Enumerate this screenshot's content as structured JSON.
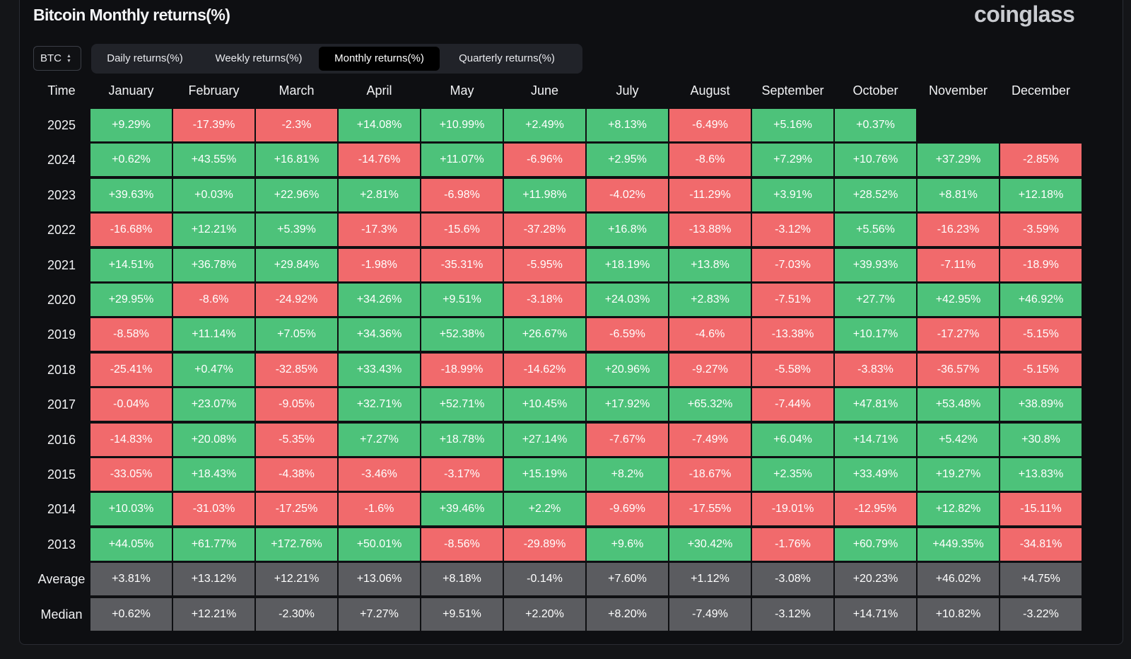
{
  "header": {
    "title": "Bitcoin Monthly returns(%)",
    "logo_text": "coinglass"
  },
  "asset_selector": {
    "value": "BTC"
  },
  "tabs": [
    {
      "label": "Daily returns(%)",
      "active": false
    },
    {
      "label": "Weekly returns(%)",
      "active": false
    },
    {
      "label": "Monthly returns(%)",
      "active": true
    },
    {
      "label": "Quarterly returns(%)",
      "active": false
    }
  ],
  "colors": {
    "positive": "#4dc27a",
    "negative": "#f16a6c",
    "summary": "#5b5c60"
  },
  "chart_data": {
    "type": "table",
    "title": "Bitcoin Monthly returns(%)",
    "time_header": "Time",
    "columns": [
      "January",
      "February",
      "March",
      "April",
      "May",
      "June",
      "July",
      "August",
      "September",
      "October",
      "November",
      "December"
    ],
    "rows": [
      {
        "label": "2025",
        "values": [
          "+9.29%",
          "-17.39%",
          "-2.3%",
          "+14.08%",
          "+10.99%",
          "+2.49%",
          "+8.13%",
          "-6.49%",
          "+5.16%",
          "+0.37%",
          null,
          null
        ]
      },
      {
        "label": "2024",
        "values": [
          "+0.62%",
          "+43.55%",
          "+16.81%",
          "-14.76%",
          "+11.07%",
          "-6.96%",
          "+2.95%",
          "-8.6%",
          "+7.29%",
          "+10.76%",
          "+37.29%",
          "-2.85%"
        ]
      },
      {
        "label": "2023",
        "values": [
          "+39.63%",
          "+0.03%",
          "+22.96%",
          "+2.81%",
          "-6.98%",
          "+11.98%",
          "-4.02%",
          "-11.29%",
          "+3.91%",
          "+28.52%",
          "+8.81%",
          "+12.18%"
        ]
      },
      {
        "label": "2022",
        "values": [
          "-16.68%",
          "+12.21%",
          "+5.39%",
          "-17.3%",
          "-15.6%",
          "-37.28%",
          "+16.8%",
          "-13.88%",
          "-3.12%",
          "+5.56%",
          "-16.23%",
          "-3.59%"
        ]
      },
      {
        "label": "2021",
        "values": [
          "+14.51%",
          "+36.78%",
          "+29.84%",
          "-1.98%",
          "-35.31%",
          "-5.95%",
          "+18.19%",
          "+13.8%",
          "-7.03%",
          "+39.93%",
          "-7.11%",
          "-18.9%"
        ]
      },
      {
        "label": "2020",
        "values": [
          "+29.95%",
          "-8.6%",
          "-24.92%",
          "+34.26%",
          "+9.51%",
          "-3.18%",
          "+24.03%",
          "+2.83%",
          "-7.51%",
          "+27.7%",
          "+42.95%",
          "+46.92%"
        ]
      },
      {
        "label": "2019",
        "values": [
          "-8.58%",
          "+11.14%",
          "+7.05%",
          "+34.36%",
          "+52.38%",
          "+26.67%",
          "-6.59%",
          "-4.6%",
          "-13.38%",
          "+10.17%",
          "-17.27%",
          "-5.15%"
        ]
      },
      {
        "label": "2018",
        "values": [
          "-25.41%",
          "+0.47%",
          "-32.85%",
          "+33.43%",
          "-18.99%",
          "-14.62%",
          "+20.96%",
          "-9.27%",
          "-5.58%",
          "-3.83%",
          "-36.57%",
          "-5.15%"
        ]
      },
      {
        "label": "2017",
        "values": [
          "-0.04%",
          "+23.07%",
          "-9.05%",
          "+32.71%",
          "+52.71%",
          "+10.45%",
          "+17.92%",
          "+65.32%",
          "-7.44%",
          "+47.81%",
          "+53.48%",
          "+38.89%"
        ]
      },
      {
        "label": "2016",
        "values": [
          "-14.83%",
          "+20.08%",
          "-5.35%",
          "+7.27%",
          "+18.78%",
          "+27.14%",
          "-7.67%",
          "-7.49%",
          "+6.04%",
          "+14.71%",
          "+5.42%",
          "+30.8%"
        ]
      },
      {
        "label": "2015",
        "values": [
          "-33.05%",
          "+18.43%",
          "-4.38%",
          "-3.46%",
          "-3.17%",
          "+15.19%",
          "+8.2%",
          "-18.67%",
          "+2.35%",
          "+33.49%",
          "+19.27%",
          "+13.83%"
        ]
      },
      {
        "label": "2014",
        "values": [
          "+10.03%",
          "-31.03%",
          "-17.25%",
          "-1.6%",
          "+39.46%",
          "+2.2%",
          "-9.69%",
          "-17.55%",
          "-19.01%",
          "-12.95%",
          "+12.82%",
          "-15.11%"
        ]
      },
      {
        "label": "2013",
        "values": [
          "+44.05%",
          "+61.77%",
          "+172.76%",
          "+50.01%",
          "-8.56%",
          "-29.89%",
          "+9.6%",
          "+30.42%",
          "-1.76%",
          "+60.79%",
          "+449.35%",
          "-34.81%"
        ]
      }
    ],
    "summary_rows": [
      {
        "label": "Average",
        "values": [
          "+3.81%",
          "+13.12%",
          "+12.21%",
          "+13.06%",
          "+8.18%",
          "-0.14%",
          "+7.60%",
          "+1.12%",
          "-3.08%",
          "+20.23%",
          "+46.02%",
          "+4.75%"
        ]
      },
      {
        "label": "Median",
        "values": [
          "+0.62%",
          "+12.21%",
          "-2.30%",
          "+7.27%",
          "+9.51%",
          "+2.20%",
          "+8.20%",
          "-7.49%",
          "-3.12%",
          "+14.71%",
          "+10.82%",
          "-3.22%"
        ]
      }
    ]
  }
}
